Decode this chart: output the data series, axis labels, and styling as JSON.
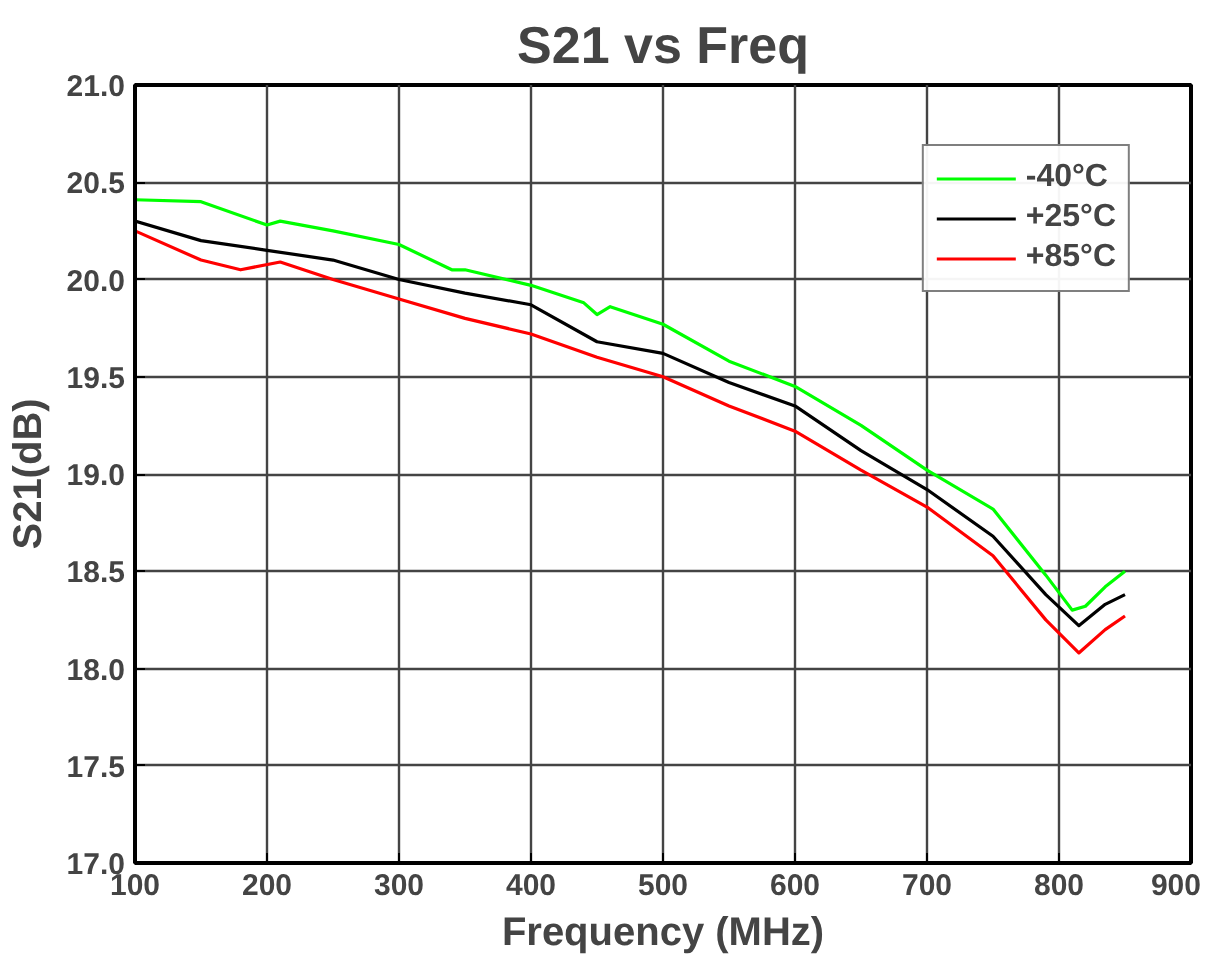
{
  "chart_data": {
    "type": "line",
    "title": "S21 vs Freq",
    "xlabel": "Frequency (MHz)",
    "ylabel": "S21(dB)",
    "xlim": [
      100,
      900
    ],
    "xticks": [
      100,
      200,
      300,
      400,
      500,
      600,
      700,
      800,
      900
    ],
    "ylim": [
      17.0,
      21.0
    ],
    "yticks": [
      {
        "value": 17.0,
        "label": "17.0"
      },
      {
        "value": 17.5,
        "label": "17.5"
      },
      {
        "value": 18.0,
        "label": "18.0"
      },
      {
        "value": 18.5,
        "label": "18.5"
      },
      {
        "value": 19.0,
        "label": "19.0"
      },
      {
        "value": 19.5,
        "label": "19.5"
      },
      {
        "value": 20.0,
        "label": "20.0"
      },
      {
        "value": 20.5,
        "label": "20.5"
      },
      {
        "value": 21.0,
        "label": "21.0"
      }
    ],
    "grid": true,
    "legend": "top right",
    "marker": "none",
    "line_style": "solid",
    "series": [
      {
        "name": "-40°C",
        "color": "#00ff00",
        "x": [
          100,
          150,
          200,
          210,
          250,
          300,
          340,
          350,
          400,
          440,
          450,
          460,
          500,
          550,
          600,
          650,
          700,
          750,
          790,
          810,
          820,
          835,
          850
        ],
        "values": [
          20.41,
          20.4,
          20.28,
          20.3,
          20.25,
          20.18,
          20.05,
          20.05,
          19.97,
          19.88,
          19.82,
          19.86,
          19.77,
          19.58,
          19.45,
          19.25,
          19.02,
          18.82,
          18.48,
          18.3,
          18.32,
          18.42,
          18.5
        ]
      },
      {
        "name": "+25°C",
        "color": "#000000",
        "x": [
          100,
          150,
          200,
          250,
          300,
          350,
          400,
          450,
          500,
          550,
          600,
          650,
          700,
          750,
          790,
          815,
          835,
          850
        ],
        "values": [
          20.3,
          20.2,
          20.15,
          20.1,
          20.0,
          19.93,
          19.87,
          19.68,
          19.62,
          19.47,
          19.35,
          19.12,
          18.92,
          18.68,
          18.38,
          18.22,
          18.33,
          18.38
        ]
      },
      {
        "name": "+85°C",
        "color": "#ff0000",
        "x": [
          100,
          150,
          180,
          210,
          250,
          300,
          350,
          400,
          450,
          500,
          550,
          600,
          650,
          700,
          750,
          790,
          815,
          835,
          850
        ],
        "values": [
          20.25,
          20.1,
          20.05,
          20.09,
          20.0,
          19.9,
          19.8,
          19.72,
          19.6,
          19.5,
          19.35,
          19.22,
          19.02,
          18.83,
          18.58,
          18.25,
          18.08,
          18.2,
          18.27
        ]
      }
    ]
  }
}
